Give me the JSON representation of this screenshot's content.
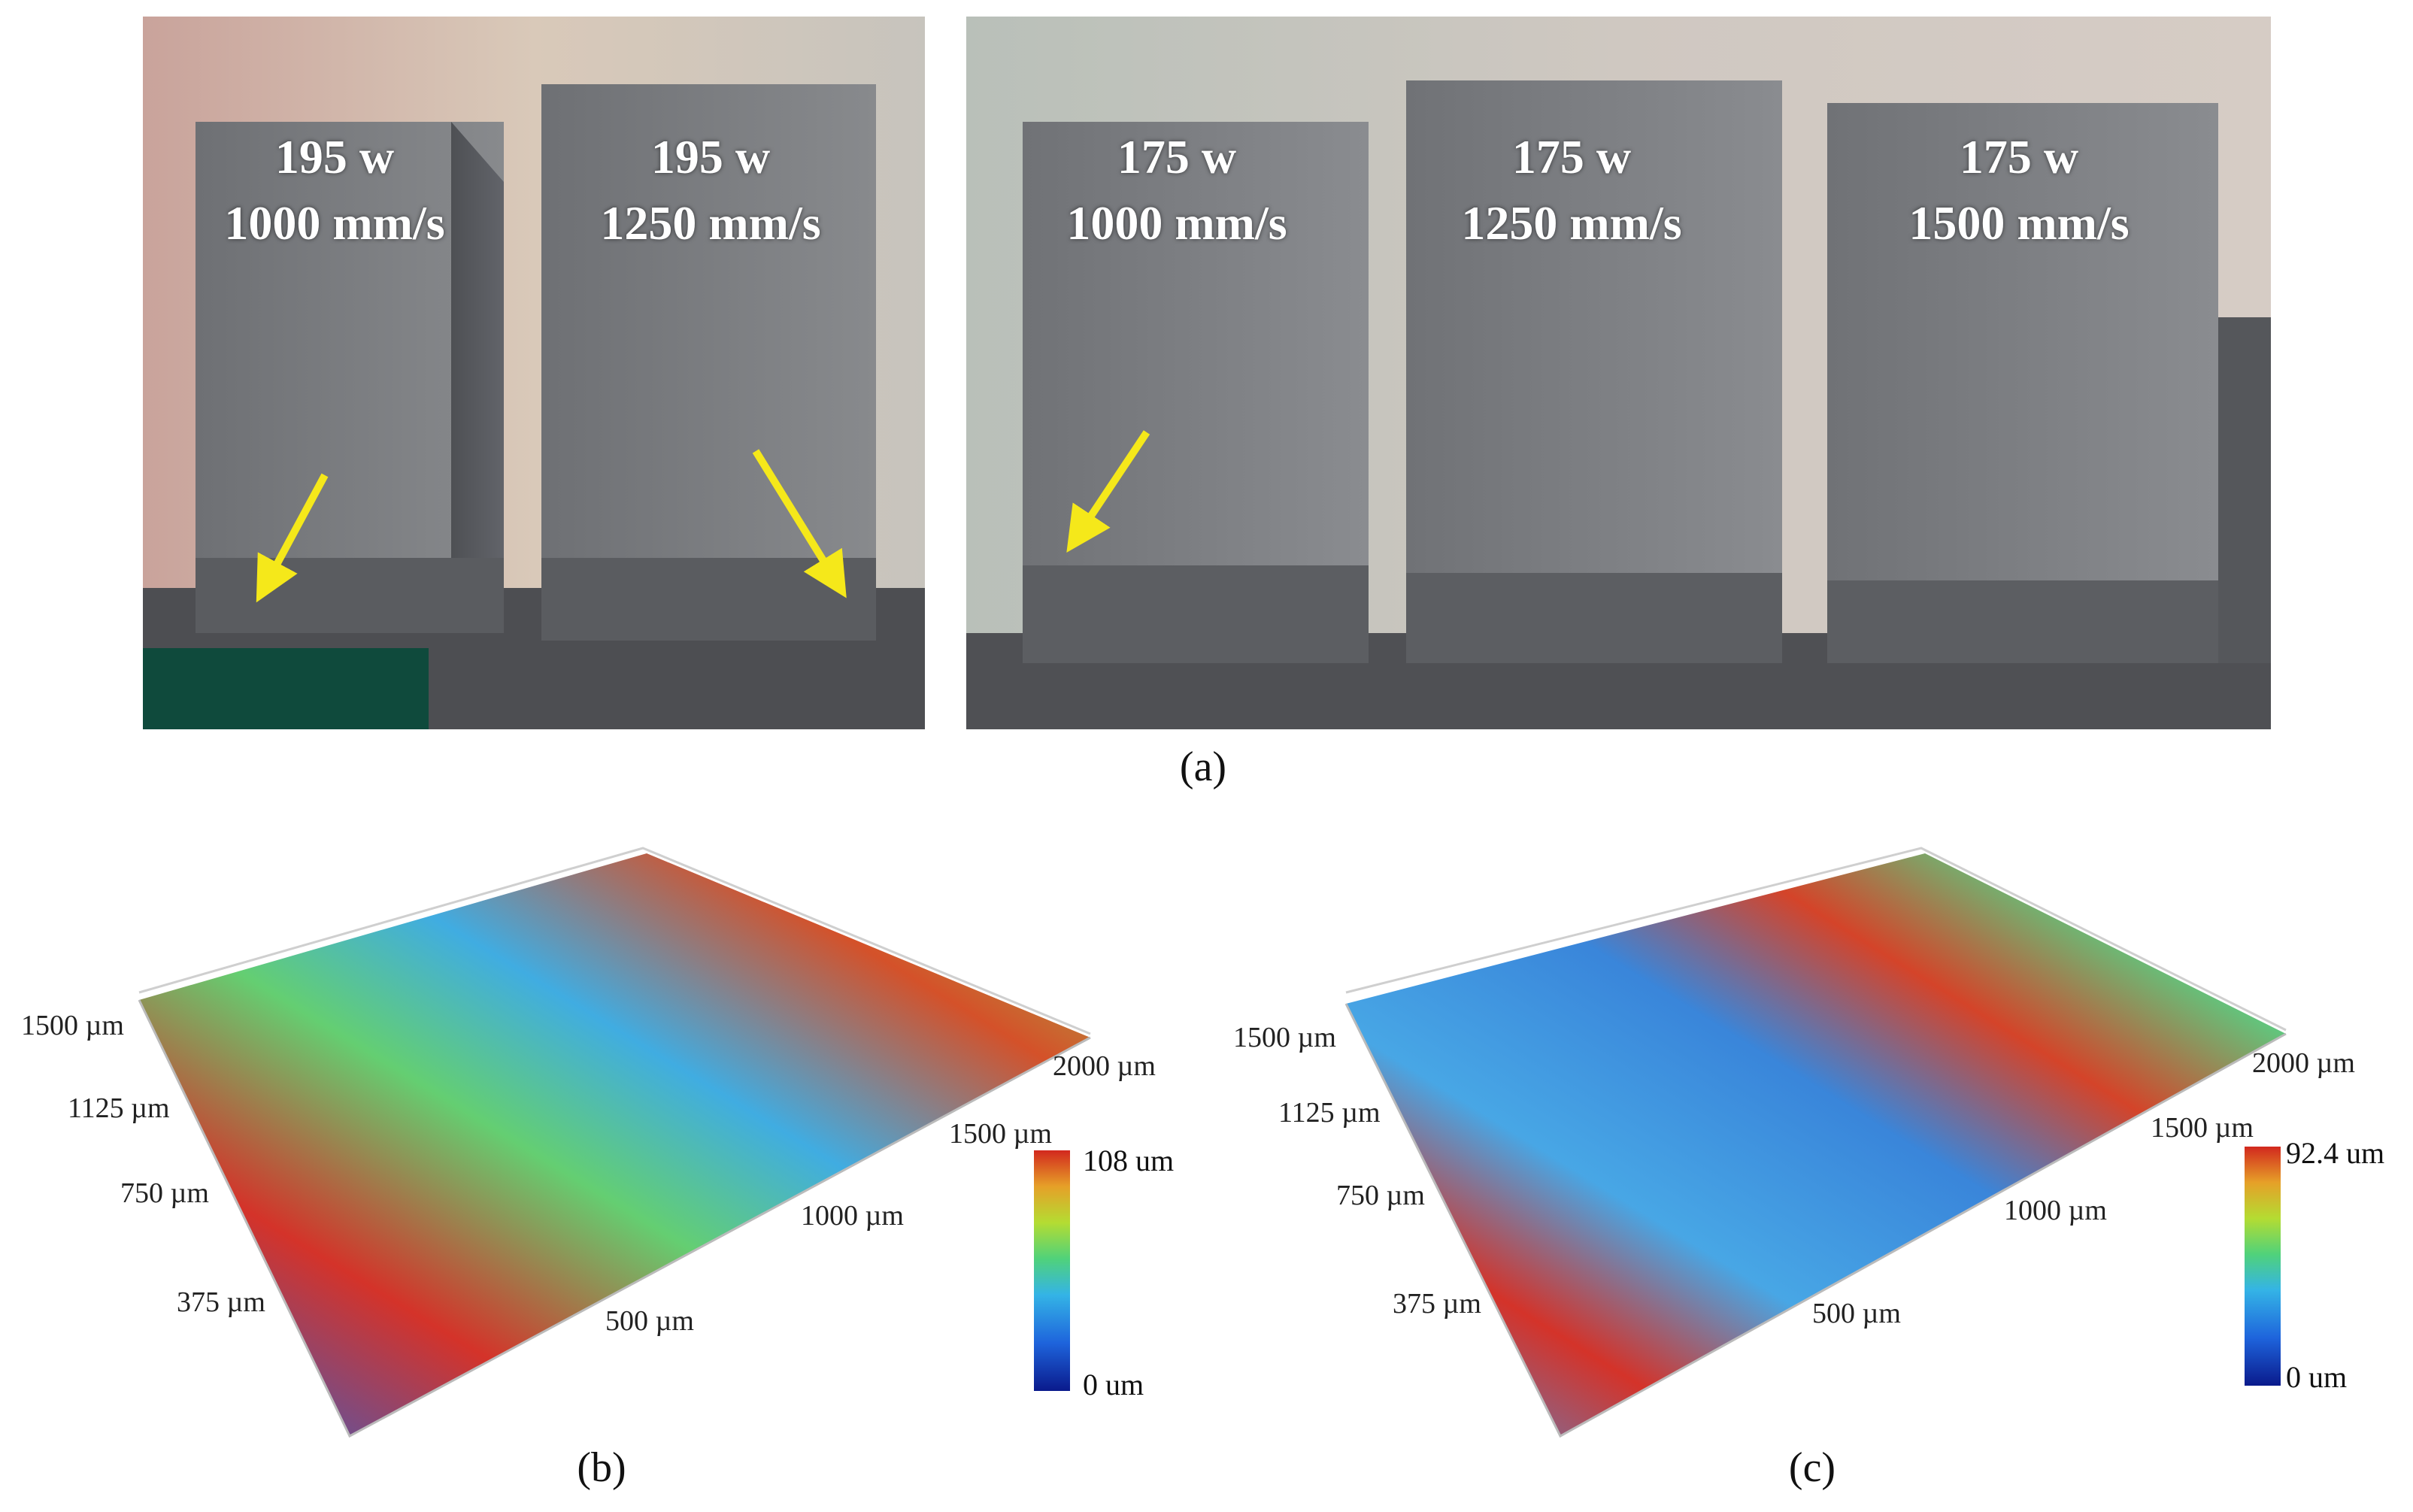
{
  "captions": {
    "a": "(a)",
    "b": "(b)",
    "c": "(c)"
  },
  "panel_a": {
    "left_blocks": [
      {
        "power": "195 w",
        "speed": "1000 mm/s"
      },
      {
        "power": "195 w",
        "speed": "1250 mm/s"
      }
    ],
    "right_blocks": [
      {
        "power": "175 w",
        "speed": "1000 mm/s"
      },
      {
        "power": "175 w",
        "speed": "1250 mm/s"
      },
      {
        "power": "175 w",
        "speed": "1500 mm/s"
      }
    ],
    "arrow_color": "#f5e81a"
  },
  "panel_b": {
    "y_ticks": [
      "1500 µm",
      "1125 µm",
      "750 µm",
      "375 µm"
    ],
    "x_ticks": [
      "2000 µm",
      "1500 µm",
      "1000 µm",
      "500 µm"
    ],
    "colorbar_max": "108 um",
    "colorbar_min": "0 um"
  },
  "panel_c": {
    "y_ticks": [
      "1500 µm",
      "1125 µm",
      "750 µm",
      "375 µm"
    ],
    "x_ticks": [
      "2000 µm",
      "1500 µm",
      "1000 µm",
      "500 µm"
    ],
    "colorbar_max": "92.4 um",
    "colorbar_min": "0 um"
  },
  "colormap": [
    "#0a1a8c",
    "#1e64dc",
    "#34b4e6",
    "#50d27a",
    "#b4dc32",
    "#e6a028",
    "#d2281e"
  ]
}
